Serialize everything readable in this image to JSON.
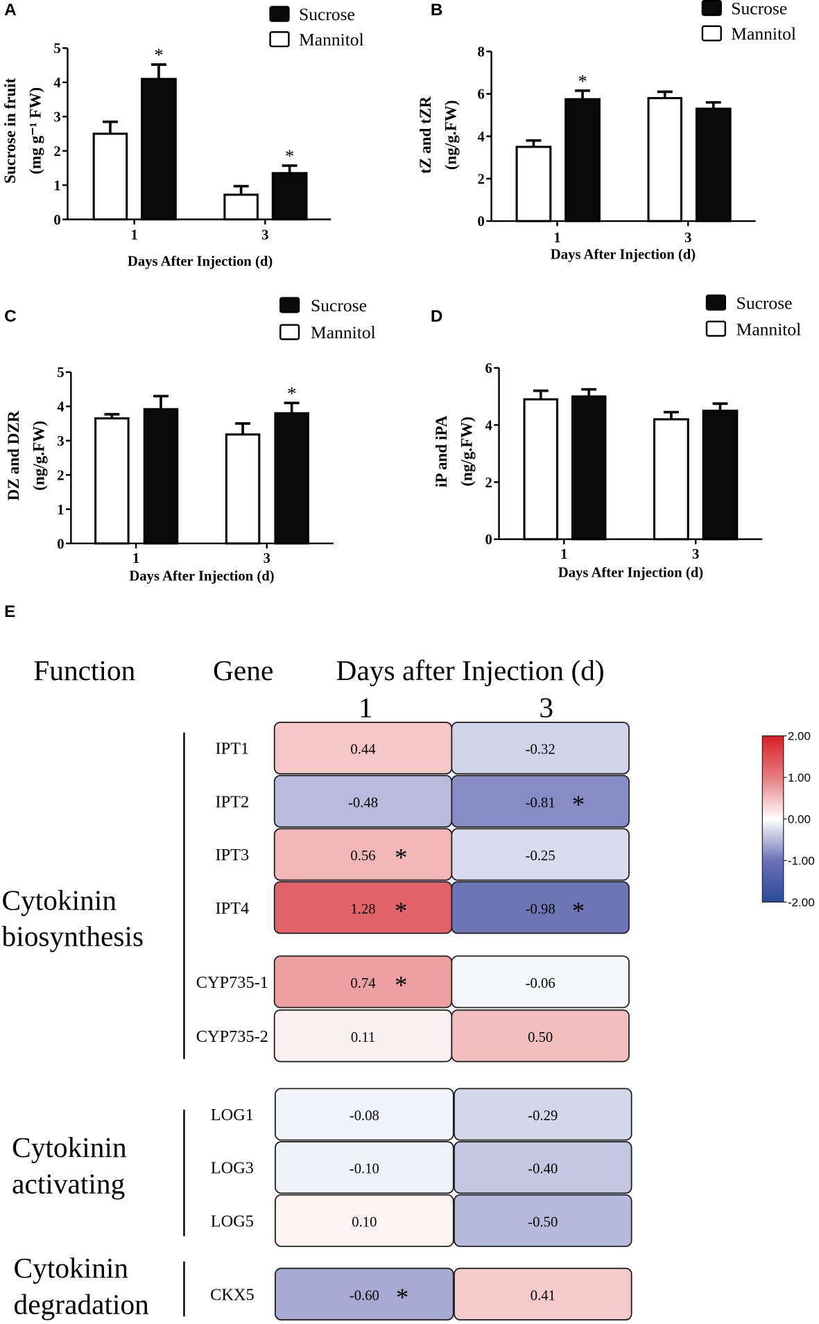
{
  "chart_data": [
    {
      "panel": "A",
      "type": "bar",
      "ylabel_lines": [
        "Sucrose in fruit",
        "(mg g⁻¹ FW)"
      ],
      "xlabel": "Days After Injection (d)",
      "ylim": [
        0,
        5
      ],
      "yticks": [
        0,
        1,
        2,
        3,
        4,
        5
      ],
      "categories": [
        "1",
        "3"
      ],
      "legend": [
        "Sucrose",
        "Mannitol"
      ],
      "series": [
        {
          "name": "Mannitol",
          "color": "#ffffff",
          "values": [
            2.5,
            0.72
          ],
          "errors": [
            0.35,
            0.25
          ],
          "significant": [
            false,
            false
          ]
        },
        {
          "name": "Sucrose",
          "color": "#0a0a0a",
          "values": [
            4.1,
            1.35
          ],
          "errors": [
            0.42,
            0.22
          ],
          "significant": [
            true,
            true
          ]
        }
      ]
    },
    {
      "panel": "B",
      "type": "bar",
      "ylabel_lines": [
        "tZ and tZR",
        "(ng/g.FW)"
      ],
      "xlabel": "Days After Injection (d)",
      "ylim": [
        0,
        8
      ],
      "yticks": [
        0,
        2,
        4,
        6,
        8
      ],
      "categories": [
        "1",
        "3"
      ],
      "legend": [
        "Sucrose",
        "Mannitol"
      ],
      "series": [
        {
          "name": "Mannitol",
          "color": "#ffffff",
          "values": [
            3.5,
            5.8
          ],
          "errors": [
            0.3,
            0.3
          ],
          "significant": [
            false,
            false
          ]
        },
        {
          "name": "Sucrose",
          "color": "#0a0a0a",
          "values": [
            5.75,
            5.3
          ],
          "errors": [
            0.4,
            0.3
          ],
          "significant": [
            true,
            false
          ]
        }
      ]
    },
    {
      "panel": "C",
      "type": "bar",
      "ylabel_lines": [
        "DZ and DZR",
        "(ng/g.FW)"
      ],
      "xlabel": "Days After Injection (d)",
      "ylim": [
        0,
        5
      ],
      "yticks": [
        0,
        1,
        2,
        3,
        4,
        5
      ],
      "categories": [
        "1",
        "3"
      ],
      "legend": [
        "Sucrose",
        "Mannitol"
      ],
      "series": [
        {
          "name": "Mannitol",
          "color": "#ffffff",
          "values": [
            3.65,
            3.18
          ],
          "errors": [
            0.12,
            0.32
          ],
          "significant": [
            false,
            false
          ]
        },
        {
          "name": "Sucrose",
          "color": "#0a0a0a",
          "values": [
            3.92,
            3.8
          ],
          "errors": [
            0.38,
            0.3
          ],
          "significant": [
            false,
            true
          ]
        }
      ]
    },
    {
      "panel": "D",
      "type": "bar",
      "ylabel_lines": [
        "iP and iPA",
        "(ng/g.FW)"
      ],
      "xlabel": "Days After Injection (d)",
      "ylim": [
        0,
        6
      ],
      "yticks": [
        0,
        2,
        4,
        6
      ],
      "categories": [
        "1",
        "3"
      ],
      "legend": [
        "Sucrose",
        "Mannitol"
      ],
      "series": [
        {
          "name": "Mannitol",
          "color": "#ffffff",
          "values": [
            4.9,
            4.2
          ],
          "errors": [
            0.3,
            0.25
          ],
          "significant": [
            false,
            false
          ]
        },
        {
          "name": "Sucrose",
          "color": "#0a0a0a",
          "values": [
            5.0,
            4.5
          ],
          "errors": [
            0.25,
            0.25
          ],
          "significant": [
            false,
            false
          ]
        }
      ]
    },
    {
      "panel": "E",
      "type": "heatmap",
      "headers": {
        "function": "Function",
        "gene": "Gene",
        "days": "Days after Injection (d)"
      },
      "columns": [
        "1",
        "3"
      ],
      "groups": [
        {
          "function_lines": [
            "Cytokinin",
            "biosynthesis"
          ],
          "rows": [
            {
              "gene": "IPT1",
              "values": [
                0.44,
                -0.32
              ],
              "significant": [
                false,
                false
              ]
            },
            {
              "gene": "IPT2",
              "values": [
                -0.48,
                -0.81
              ],
              "significant": [
                false,
                true
              ]
            },
            {
              "gene": "IPT3",
              "values": [
                0.56,
                -0.25
              ],
              "significant": [
                true,
                false
              ]
            },
            {
              "gene": "IPT4",
              "values": [
                1.28,
                -0.98
              ],
              "significant": [
                true,
                true
              ]
            },
            {
              "gene": "CYP735-1",
              "values": [
                0.74,
                -0.06
              ],
              "significant": [
                true,
                false
              ]
            },
            {
              "gene": "CYP735-2",
              "values": [
                0.11,
                0.5
              ],
              "significant": [
                false,
                false
              ]
            }
          ]
        },
        {
          "function_lines": [
            "Cytokinin",
            "activating"
          ],
          "rows": [
            {
              "gene": "LOG1",
              "values": [
                -0.08,
                -0.29
              ],
              "significant": [
                false,
                false
              ]
            },
            {
              "gene": "LOG3",
              "values": [
                -0.1,
                -0.4
              ],
              "significant": [
                false,
                false
              ]
            },
            {
              "gene": "LOG5",
              "values": [
                0.1,
                -0.5
              ],
              "significant": [
                false,
                false
              ]
            }
          ]
        },
        {
          "function_lines": [
            "Cytokinin",
            "degradation"
          ],
          "rows": [
            {
              "gene": "CKX5",
              "values": [
                -0.6,
                0.41
              ],
              "significant": [
                true,
                false
              ]
            }
          ]
        }
      ],
      "colorbar": {
        "range": [
          -2,
          2
        ],
        "ticks": [
          "2.00",
          "1.00",
          "0.00",
          "-1.00",
          "-2.00"
        ],
        "stops": [
          {
            "v": -2,
            "c": "#2b4a9b"
          },
          {
            "v": -1,
            "c": "#6b72b6"
          },
          {
            "v": 0,
            "c": "#ffffff"
          },
          {
            "v": 1,
            "c": "#e67d80"
          },
          {
            "v": 2,
            "c": "#d71f26"
          }
        ]
      }
    }
  ],
  "significance_marker": "*"
}
